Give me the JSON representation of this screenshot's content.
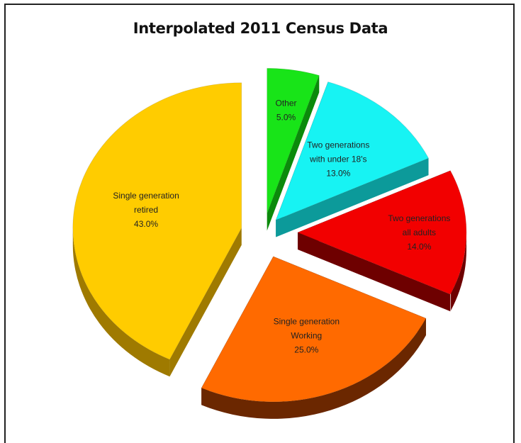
{
  "chart_data": {
    "type": "pie",
    "title": "Interpolated 2011 Census Data",
    "slices": [
      {
        "label_lines": [
          "Other",
          "5.0%"
        ],
        "category": "Other",
        "value": 5.0,
        "color": "#18e418",
        "side_color": "#0b8a0b",
        "label_color": "#222222"
      },
      {
        "label_lines": [
          "Two generations",
          "with under 18's",
          "13.0%"
        ],
        "category": "Two generations with under 18's",
        "value": 13.0,
        "color": "#17f3f3",
        "side_color": "#0c9a9a",
        "label_color": "#222222"
      },
      {
        "label_lines": [
          "Two generations",
          "all adults",
          "14.0%"
        ],
        "category": "Two generations all adults",
        "value": 14.0,
        "color": "#f20000",
        "side_color": "#6e0000",
        "label_color": "#222222"
      },
      {
        "label_lines": [
          "Single generation",
          "Working",
          "25.0%"
        ],
        "category": "Single generation Working",
        "value": 25.0,
        "color": "#ff6a00",
        "side_color": "#6b2700",
        "label_color": "#222222"
      },
      {
        "label_lines": [
          "Single generation",
          "retired",
          "43.0%"
        ],
        "category": "Single generation retired",
        "value": 43.0,
        "color": "#ffcc00",
        "side_color": "#9f7a00",
        "label_color": "#222222"
      }
    ]
  }
}
